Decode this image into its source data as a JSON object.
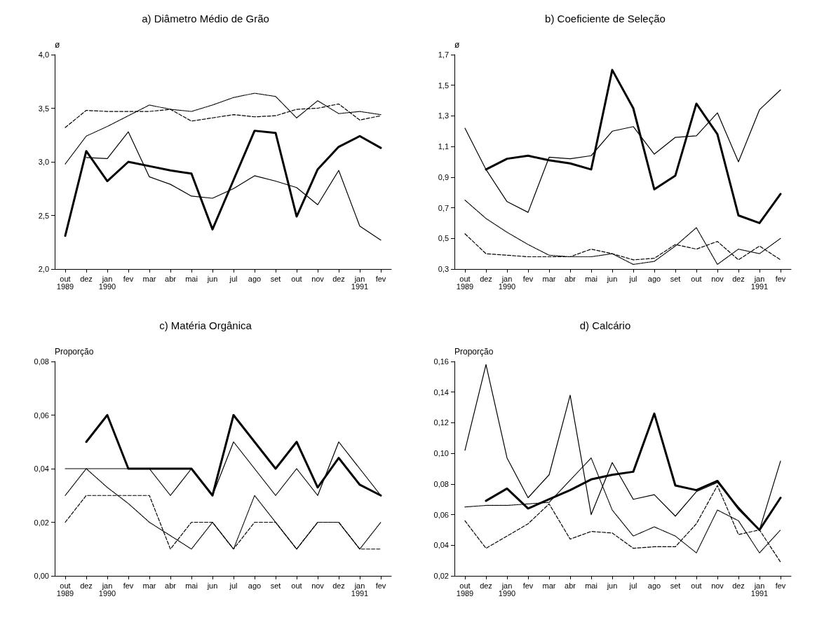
{
  "chart_data": [
    {
      "type": "line",
      "title": "a) Diâmetro Médio de Grão",
      "ylabel": "ø",
      "categories": [
        "out\n1989",
        "dez",
        "jan\n1990",
        "fev",
        "mar",
        "abr",
        "mai",
        "jun",
        "jul",
        "ago",
        "set",
        "out",
        "nov",
        "dez",
        "jan\n1991",
        "fev"
      ],
      "ylim": [
        2.0,
        4.0
      ],
      "yticks": [
        {
          "value": 2.0,
          "label": "2,0"
        },
        {
          "value": 2.5,
          "label": "2,5"
        },
        {
          "value": 3.0,
          "label": "3,0"
        },
        {
          "value": 3.5,
          "label": "3,5"
        },
        {
          "value": 4.0,
          "label": "4,0"
        }
      ],
      "grid": false,
      "marker": "none",
      "series": [
        {
          "color": "#000000",
          "line_style": "solid",
          "values": [
            2.31,
            3.1,
            2.82,
            3.0,
            2.96,
            2.92,
            2.89,
            2.37,
            2.83,
            3.29,
            3.27,
            2.49,
            2.93,
            3.14,
            3.24,
            3.13
          ]
        },
        {
          "color": "#000000",
          "line_style": "solid",
          "values": [
            null,
            3.04,
            3.03,
            3.28,
            2.86,
            2.79,
            2.68,
            2.66,
            2.75,
            2.87,
            2.82,
            2.76,
            2.6,
            2.92,
            2.4,
            2.27
          ]
        },
        {
          "color": "#000000",
          "line_style": "dotted",
          "values": [
            2.98,
            3.24,
            3.33,
            3.43,
            3.53,
            3.49,
            3.47,
            3.53,
            3.6,
            3.64,
            3.61,
            3.41,
            3.57,
            3.45,
            3.47,
            3.44
          ]
        },
        {
          "color": "#000000",
          "line_style": "dashed",
          "values": [
            3.32,
            3.48,
            3.47,
            3.47,
            3.47,
            3.49,
            3.38,
            3.41,
            3.44,
            3.42,
            3.43,
            3.49,
            3.5,
            3.54,
            3.39,
            3.43
          ]
        }
      ]
    },
    {
      "type": "line",
      "title": "b) Coeficiente de Seleção",
      "ylabel": "ø",
      "categories": [
        "out\n1989",
        "dez",
        "jan\n1990",
        "fev",
        "mar",
        "abr",
        "mai",
        "jun",
        "jul",
        "ago",
        "set",
        "out",
        "nov",
        "dez",
        "jan\n1991",
        "fev"
      ],
      "ylim": [
        0.3,
        1.7
      ],
      "yticks": [
        {
          "value": 0.3,
          "label": "0,3"
        },
        {
          "value": 0.5,
          "label": "0,5"
        },
        {
          "value": 0.7,
          "label": "0,7"
        },
        {
          "value": 0.9,
          "label": "0,9"
        },
        {
          "value": 1.1,
          "label": "1,1"
        },
        {
          "value": 1.3,
          "label": "1,3"
        },
        {
          "value": 1.5,
          "label": "1,5"
        },
        {
          "value": 1.7,
          "label": "1,7"
        }
      ],
      "grid": false,
      "marker": "none",
      "series": [
        {
          "color": "#000000",
          "line_style": "solid",
          "values": [
            null,
            0.95,
            1.02,
            1.04,
            1.01,
            0.99,
            0.95,
            1.6,
            1.35,
            0.82,
            0.91,
            1.38,
            1.18,
            0.65,
            0.6,
            0.79
          ]
        },
        {
          "color": "#000000",
          "line_style": "solid",
          "values": [
            1.22,
            0.95,
            0.74,
            0.67,
            1.03,
            1.02,
            1.04,
            1.2,
            1.23,
            1.05,
            1.16,
            1.17,
            1.32,
            1.0,
            1.34,
            1.47
          ]
        },
        {
          "color": "#000000",
          "line_style": "dotted",
          "values": [
            0.75,
            0.63,
            0.54,
            0.46,
            0.39,
            0.38,
            0.38,
            0.4,
            0.33,
            0.35,
            0.45,
            0.57,
            0.33,
            0.43,
            0.4,
            0.5
          ]
        },
        {
          "color": "#000000",
          "line_style": "dashed",
          "values": [
            0.53,
            0.4,
            0.39,
            0.38,
            0.38,
            0.38,
            0.43,
            0.4,
            0.36,
            0.37,
            0.46,
            0.43,
            0.48,
            0.36,
            0.45,
            0.36
          ]
        }
      ]
    },
    {
      "type": "line",
      "title": "c) Matéria Orgânica",
      "ylabel": "Proporção",
      "categories": [
        "out\n1989",
        "dez",
        "jan\n1990",
        "fev",
        "mar",
        "abr",
        "mai",
        "jun",
        "jul",
        "ago",
        "set",
        "out",
        "nov",
        "dez",
        "jan\n1991",
        "fev"
      ],
      "ylim": [
        0.0,
        0.08
      ],
      "yticks": [
        {
          "value": 0.0,
          "label": "0,00"
        },
        {
          "value": 0.02,
          "label": "0,02"
        },
        {
          "value": 0.04,
          "label": "0,04"
        },
        {
          "value": 0.06,
          "label": "0,06"
        },
        {
          "value": 0.08,
          "label": "0,08"
        }
      ],
      "grid": false,
      "marker": "none",
      "series": [
        {
          "color": "#000000",
          "line_style": "solid",
          "values": [
            null,
            0.05,
            0.06,
            0.04,
            0.04,
            0.04,
            0.04,
            0.03,
            0.06,
            0.05,
            0.04,
            0.05,
            0.033,
            0.044,
            0.034,
            0.03
          ]
        },
        {
          "color": "#000000",
          "line_style": "solid",
          "values": [
            0.04,
            0.04,
            0.04,
            0.04,
            0.04,
            0.03,
            0.04,
            0.03,
            0.05,
            0.04,
            0.03,
            0.04,
            0.03,
            0.05,
            0.04,
            0.03
          ]
        },
        {
          "color": "#000000",
          "line_style": "dotted",
          "values": [
            0.03,
            0.04,
            0.033,
            0.027,
            0.02,
            0.015,
            0.01,
            0.02,
            0.01,
            0.03,
            0.02,
            0.01,
            0.02,
            0.02,
            0.01,
            0.02
          ]
        },
        {
          "color": "#000000",
          "line_style": "dashed",
          "values": [
            0.02,
            0.03,
            0.03,
            0.03,
            0.03,
            0.01,
            0.02,
            0.02,
            0.01,
            0.02,
            0.02,
            0.01,
            0.02,
            0.02,
            0.01,
            0.01
          ]
        }
      ]
    },
    {
      "type": "line",
      "title": "d) Calcário",
      "ylabel": "Proporção",
      "categories": [
        "out\n1989",
        "dez",
        "jan\n1990",
        "fev",
        "mar",
        "abr",
        "mai",
        "jun",
        "jul",
        "ago",
        "set",
        "out",
        "nov",
        "dez",
        "jan\n1991",
        "fev"
      ],
      "ylim": [
        0.02,
        0.16
      ],
      "yticks": [
        {
          "value": 0.02,
          "label": "0,02"
        },
        {
          "value": 0.04,
          "label": "0,04"
        },
        {
          "value": 0.06,
          "label": "0,06"
        },
        {
          "value": 0.08,
          "label": "0,08"
        },
        {
          "value": 0.1,
          "label": "0,10"
        },
        {
          "value": 0.12,
          "label": "0,12"
        },
        {
          "value": 0.14,
          "label": "0,14"
        },
        {
          "value": 0.16,
          "label": "0,16"
        }
      ],
      "grid": false,
      "marker": "none",
      "series": [
        {
          "color": "#000000",
          "line_style": "solid",
          "values": [
            null,
            0.069,
            0.077,
            0.064,
            0.07,
            0.076,
            0.083,
            0.086,
            0.088,
            0.126,
            0.079,
            0.076,
            0.082,
            0.064,
            0.05,
            0.071
          ]
        },
        {
          "color": "#000000",
          "line_style": "solid",
          "values": [
            0.102,
            0.158,
            0.097,
            0.071,
            0.086,
            0.138,
            0.06,
            0.094,
            0.07,
            0.073,
            0.059,
            0.075,
            0.081,
            0.065,
            0.05,
            0.095
          ]
        },
        {
          "color": "#000000",
          "line_style": "dotted",
          "values": [
            0.065,
            0.066,
            0.066,
            0.067,
            0.068,
            null,
            0.097,
            0.063,
            0.046,
            0.052,
            0.046,
            0.035,
            0.063,
            0.056,
            0.035,
            0.05
          ]
        },
        {
          "color": "#000000",
          "line_style": "dashed",
          "values": [
            0.056,
            0.038,
            0.046,
            0.054,
            0.067,
            0.044,
            0.049,
            0.048,
            0.038,
            0.039,
            0.039,
            0.054,
            0.079,
            0.047,
            0.05,
            0.029
          ]
        }
      ]
    }
  ]
}
